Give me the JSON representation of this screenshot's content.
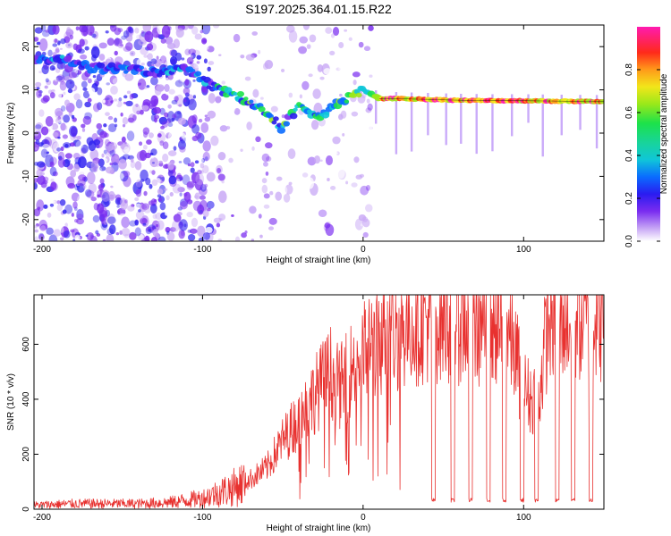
{
  "title": "S197.2025.364.01.15.R22",
  "colors": {
    "snr_line": "#e8312f",
    "ridge": "#0a0a0a",
    "colormap": [
      "#ffffff",
      "#c7a6f5",
      "#7a2cf0",
      "#2a1cf0",
      "#0a6cff",
      "#10c6d8",
      "#1ce24a",
      "#9ae81a",
      "#f2e61a",
      "#ff9a1a",
      "#ff2a1a",
      "#ff1ab0"
    ]
  },
  "chart_data": [
    {
      "type": "heatmap",
      "name": "spectrogram",
      "title": "S197.2025.364.01.15.R22",
      "xlabel": "Height of straight line (km)",
      "ylabel": "Frequency (Hz)",
      "xlim": [
        -205,
        150
      ],
      "ylim": [
        -25,
        25
      ],
      "x_ticks": [
        -200,
        -100,
        0,
        100
      ],
      "y_ticks": [
        -20,
        -10,
        0,
        10,
        20
      ],
      "x_tick_labels": [
        "-200",
        "-100",
        "0",
        "100"
      ],
      "y_tick_labels": [
        "-20",
        "-10",
        "0",
        "10",
        "20"
      ],
      "ridge": {
        "x": [
          -205,
          -185,
          -170,
          -150,
          -130,
          -110,
          -95,
          -80,
          -65,
          -55,
          -50,
          -45,
          -40,
          -35,
          -30,
          -25,
          -20,
          -10,
          0,
          5,
          10,
          20,
          40,
          60,
          80,
          100,
          120,
          150
        ],
        "y": [
          17,
          17,
          15,
          15,
          14,
          15,
          11,
          9,
          6,
          3,
          1,
          4,
          6,
          5,
          4,
          4,
          6,
          8,
          10,
          9,
          8,
          8,
          7.8,
          7.6,
          7.5,
          7.5,
          7.4,
          7.3
        ]
      },
      "colorbar": {
        "label": "Normalized spectral amplitude",
        "range": [
          0,
          1
        ],
        "ticks": [
          0.0,
          0.2,
          0.4,
          0.6,
          0.8
        ],
        "tick_labels": [
          "0.0",
          "0.2",
          "0.4",
          "0.6",
          "0.8"
        ]
      }
    },
    {
      "type": "line",
      "name": "snr",
      "title": "",
      "xlabel": "Height of straight line (km)",
      "ylabel": "SNR (10 * v/v)",
      "xlim": [
        -205,
        150
      ],
      "ylim": [
        0,
        780
      ],
      "x_ticks": [
        -200,
        -100,
        0,
        100
      ],
      "y_ticks": [
        0,
        200,
        400,
        600
      ],
      "x_tick_labels": [
        "-200",
        "-100",
        "0",
        "100"
      ],
      "y_tick_labels": [
        "0",
        "200",
        "400",
        "600"
      ],
      "series": [
        {
          "name": "SNR",
          "x": [
            -205,
            -180,
            -160,
            -140,
            -120,
            -100,
            -90,
            -80,
            -70,
            -60,
            -50,
            -40,
            -30,
            -25,
            -20,
            -15,
            -10,
            -5,
            0,
            5,
            10,
            15,
            20,
            25,
            30,
            40,
            50,
            60,
            70,
            80,
            90,
            95,
            100,
            105,
            110,
            115,
            120,
            130,
            140,
            150
          ],
          "y": [
            15,
            20,
            20,
            20,
            25,
            40,
            60,
            80,
            110,
            150,
            250,
            330,
            420,
            460,
            500,
            440,
            480,
            540,
            560,
            600,
            620,
            650,
            640,
            660,
            680,
            690,
            700,
            690,
            680,
            680,
            650,
            560,
            440,
            400,
            430,
            680,
            720,
            700,
            690,
            700
          ],
          "dropouts_x": [
            44,
            56,
            67,
            78,
            88,
            99,
            108,
            121,
            131,
            142
          ],
          "dropout_level": 25
        }
      ]
    }
  ]
}
